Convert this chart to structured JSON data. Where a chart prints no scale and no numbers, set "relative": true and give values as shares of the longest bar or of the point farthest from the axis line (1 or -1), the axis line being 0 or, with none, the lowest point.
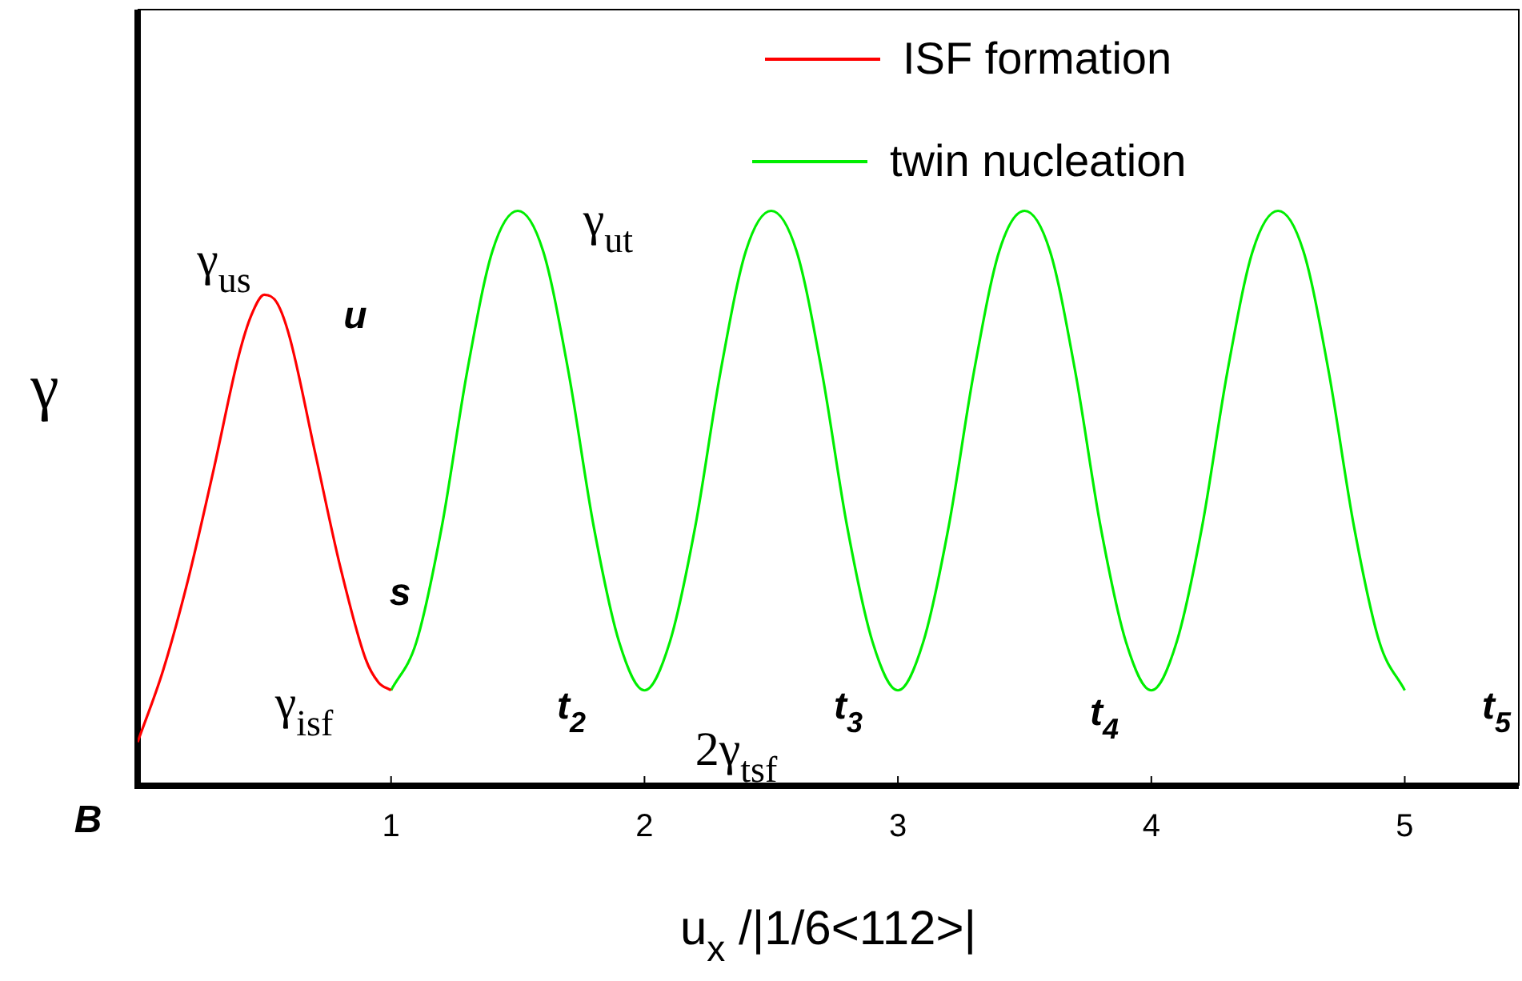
{
  "chart_data": {
    "type": "line",
    "relative": true,
    "xlabel": "u$_{x}$ /|1/6<112>|",
    "ylabel": "γ",
    "xlim": [
      0,
      5.45
    ],
    "xticks": [
      1,
      2,
      3,
      4,
      5
    ],
    "grid": false,
    "legend": "top right",
    "marker": "none",
    "line_style": "solid",
    "series": [
      {
        "name": "ISF formation",
        "color": "#ff0000",
        "x": [
          0,
          0.1,
          0.2,
          0.3,
          0.4,
          0.45,
          0.5,
          0.55,
          0.6,
          0.7,
          0.8,
          0.9,
          0.95,
          1.0
        ],
        "values": [
          0.076,
          0.2,
          0.36,
          0.55,
          0.75,
          0.82,
          0.854,
          0.84,
          0.78,
          0.58,
          0.38,
          0.22,
          0.18,
          0.166
        ]
      },
      {
        "name": "twin nucleation",
        "color": "#00ee00",
        "x": [
          1,
          1.1,
          1.2,
          1.3,
          1.4,
          1.5,
          1.6,
          1.7,
          1.8,
          1.9,
          2,
          2.1,
          2.2,
          2.3,
          2.4,
          2.5,
          2.6,
          2.7,
          2.8,
          2.9,
          3,
          3.1,
          3.2,
          3.3,
          3.4,
          3.5,
          3.6,
          3.7,
          3.8,
          3.9,
          4,
          4.1,
          4.2,
          4.3,
          4.4,
          4.5,
          4.6,
          4.7,
          4.8,
          4.9,
          5
        ],
        "values": [
          0.166,
          0.25,
          0.45,
          0.72,
          0.93,
          1.0,
          0.93,
          0.72,
          0.45,
          0.25,
          0.166,
          0.25,
          0.45,
          0.72,
          0.93,
          1.0,
          0.93,
          0.72,
          0.45,
          0.25,
          0.166,
          0.25,
          0.45,
          0.72,
          0.93,
          1.0,
          0.93,
          0.72,
          0.45,
          0.25,
          0.166,
          0.25,
          0.45,
          0.72,
          0.93,
          1.0,
          0.93,
          0.72,
          0.45,
          0.25,
          0.166
        ]
      }
    ],
    "annotations": [
      "γ$_{us}$",
      "u",
      "γ$_{ut}$",
      "s",
      "γ$_{isf}$",
      "t$_{2}$",
      "2γ$_{tsf}$",
      "t$_{3}$",
      "t$_{4}$",
      "t$_{5}$",
      "B"
    ]
  }
}
